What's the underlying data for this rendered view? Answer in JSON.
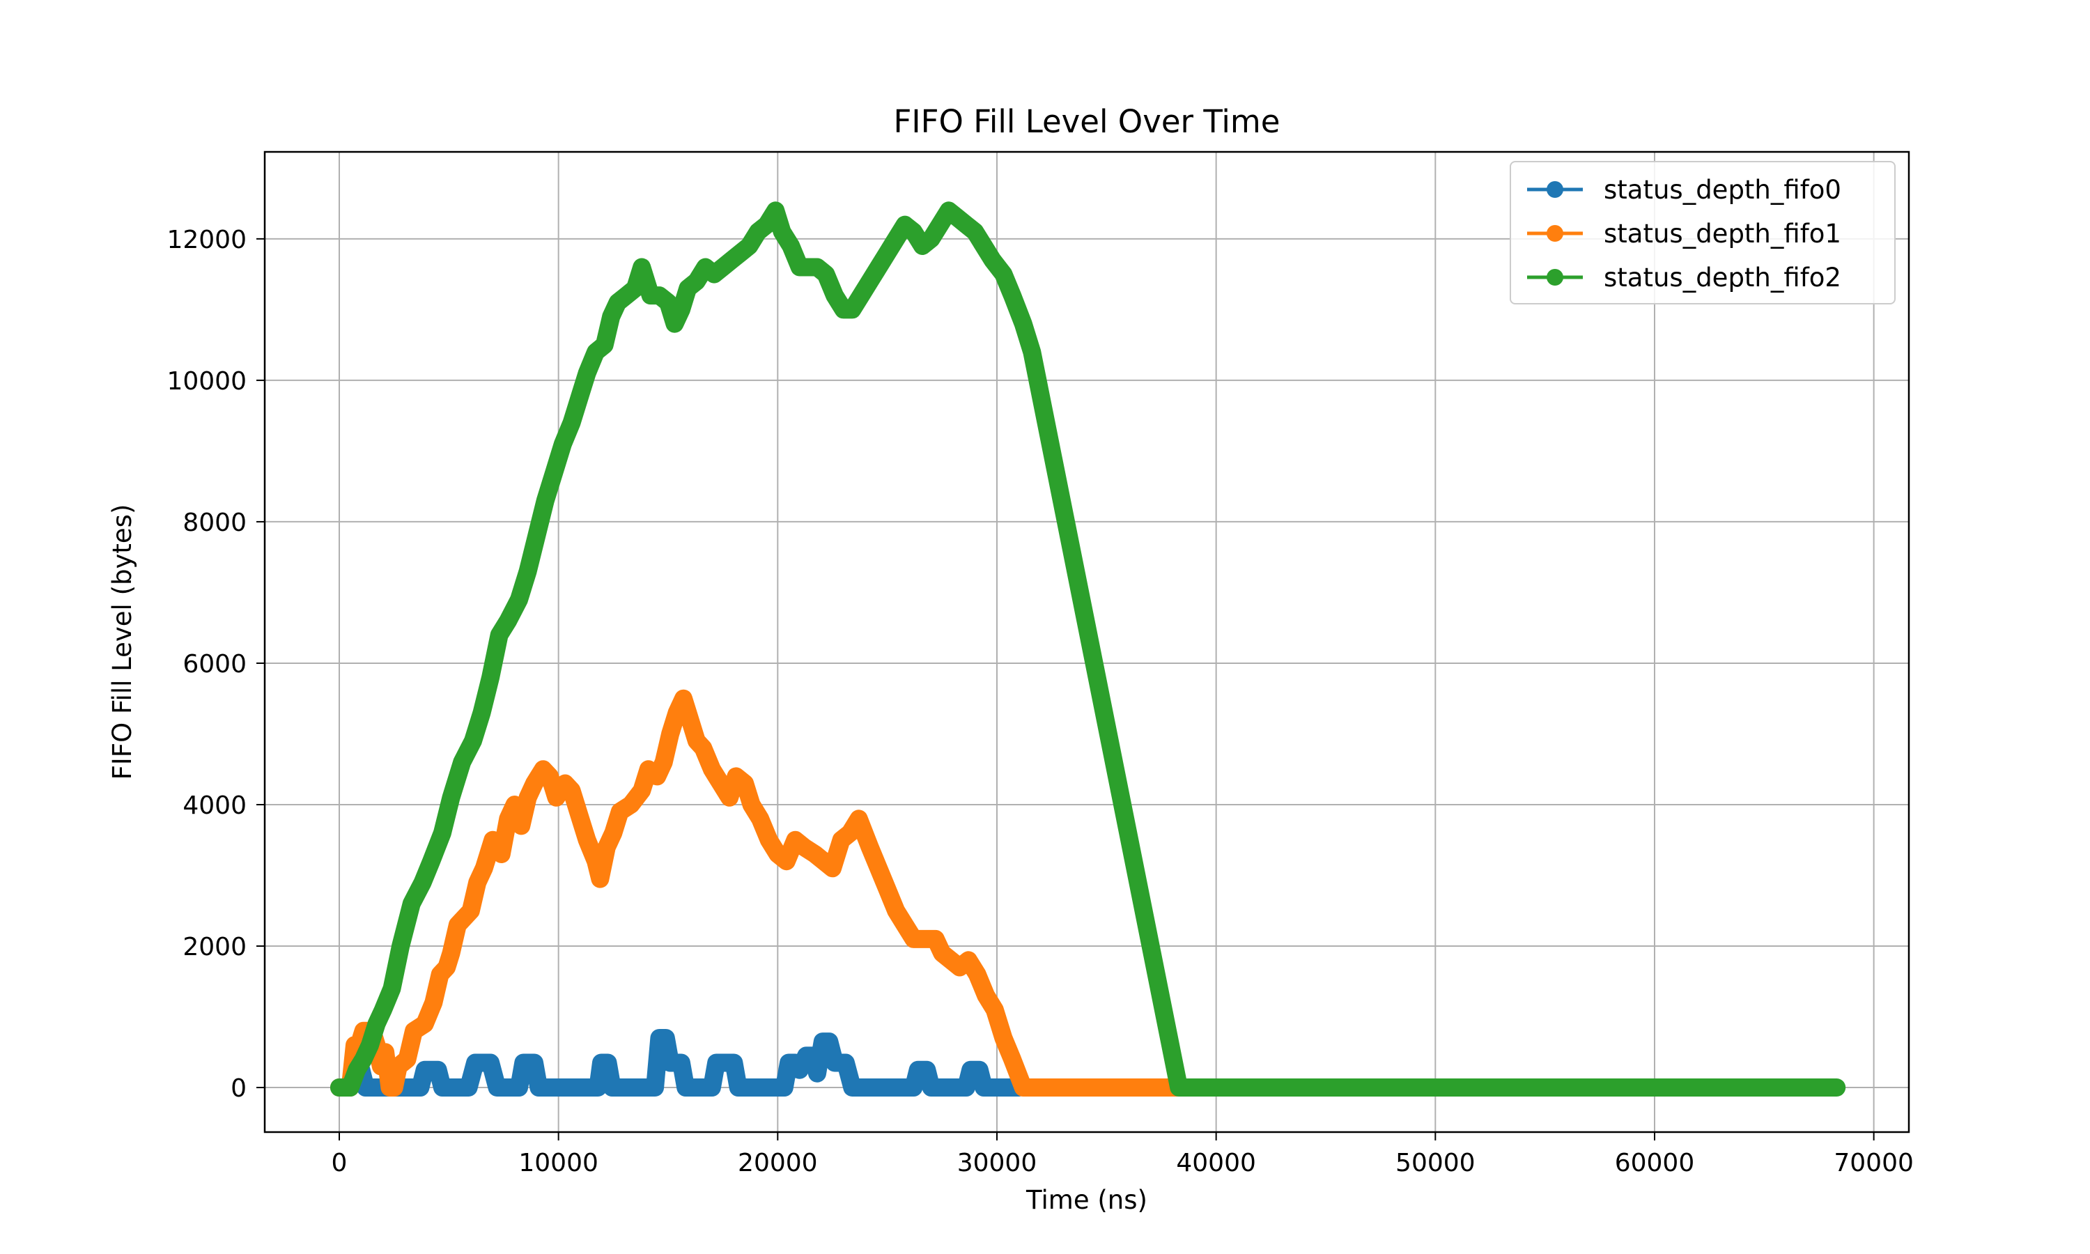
{
  "chart_data": {
    "type": "line",
    "title": "FIFO Fill Level Over Time",
    "xlabel": "Time (ns)",
    "ylabel": "FIFO Fill Level (bytes)",
    "xlim": [
      -3400,
      71600
    ],
    "ylim": [
      -630,
      13230
    ],
    "xticks": [
      0,
      10000,
      20000,
      30000,
      40000,
      50000,
      60000,
      70000
    ],
    "yticks": [
      0,
      2000,
      4000,
      6000,
      8000,
      10000,
      12000
    ],
    "grid": true,
    "legend_position": "top-right",
    "series": [
      {
        "name": "status_depth_fifo0",
        "color": "#1f77b4",
        "points": [
          [
            0,
            0
          ],
          [
            500,
            0
          ],
          [
            700,
            250
          ],
          [
            1000,
            250
          ],
          [
            1200,
            0
          ],
          [
            3700,
            0
          ],
          [
            3900,
            250
          ],
          [
            4500,
            250
          ],
          [
            4700,
            0
          ],
          [
            5900,
            0
          ],
          [
            6200,
            350
          ],
          [
            6900,
            350
          ],
          [
            7200,
            0
          ],
          [
            8200,
            0
          ],
          [
            8400,
            350
          ],
          [
            8900,
            350
          ],
          [
            9100,
            0
          ],
          [
            11800,
            0
          ],
          [
            11950,
            350
          ],
          [
            12250,
            350
          ],
          [
            12450,
            0
          ],
          [
            14400,
            0
          ],
          [
            14600,
            700
          ],
          [
            14900,
            700
          ],
          [
            15100,
            350
          ],
          [
            15600,
            350
          ],
          [
            15800,
            0
          ],
          [
            17000,
            0
          ],
          [
            17200,
            350
          ],
          [
            18000,
            350
          ],
          [
            18200,
            0
          ],
          [
            20300,
            0
          ],
          [
            20500,
            350
          ],
          [
            20800,
            350
          ],
          [
            21000,
            250
          ],
          [
            21300,
            450
          ],
          [
            21600,
            450
          ],
          [
            21800,
            200
          ],
          [
            22050,
            650
          ],
          [
            22350,
            650
          ],
          [
            22600,
            350
          ],
          [
            23100,
            350
          ],
          [
            23400,
            0
          ],
          [
            26200,
            0
          ],
          [
            26400,
            250
          ],
          [
            26800,
            250
          ],
          [
            27000,
            0
          ],
          [
            28600,
            0
          ],
          [
            28800,
            250
          ],
          [
            29200,
            250
          ],
          [
            29400,
            0
          ],
          [
            31000,
            0
          ]
        ]
      },
      {
        "name": "status_depth_fifo1",
        "color": "#ff7f0e",
        "points": [
          [
            0,
            0
          ],
          [
            500,
            0
          ],
          [
            700,
            600
          ],
          [
            900,
            600
          ],
          [
            1100,
            800
          ],
          [
            1500,
            800
          ],
          [
            1700,
            600
          ],
          [
            1900,
            300
          ],
          [
            2100,
            500
          ],
          [
            2300,
            0
          ],
          [
            2500,
            0
          ],
          [
            2700,
            300
          ],
          [
            3100,
            400
          ],
          [
            3400,
            800
          ],
          [
            3900,
            900
          ],
          [
            4300,
            1200
          ],
          [
            4600,
            1600
          ],
          [
            4900,
            1700
          ],
          [
            5100,
            1900
          ],
          [
            5400,
            2300
          ],
          [
            6000,
            2500
          ],
          [
            6300,
            2900
          ],
          [
            6600,
            3100
          ],
          [
            7000,
            3500
          ],
          [
            7400,
            3300
          ],
          [
            7700,
            3800
          ],
          [
            8000,
            4000
          ],
          [
            8300,
            3700
          ],
          [
            8600,
            4100
          ],
          [
            8900,
            4300
          ],
          [
            9300,
            4500
          ],
          [
            9600,
            4400
          ],
          [
            9900,
            4100
          ],
          [
            10300,
            4300
          ],
          [
            10600,
            4200
          ],
          [
            11000,
            3800
          ],
          [
            11300,
            3500
          ],
          [
            11700,
            3200
          ],
          [
            11900,
            2950
          ],
          [
            12200,
            3400
          ],
          [
            12500,
            3600
          ],
          [
            12800,
            3900
          ],
          [
            13300,
            4000
          ],
          [
            13800,
            4200
          ],
          [
            14100,
            4500
          ],
          [
            14500,
            4400
          ],
          [
            14800,
            4600
          ],
          [
            15100,
            5000
          ],
          [
            15400,
            5300
          ],
          [
            15700,
            5500
          ],
          [
            16000,
            5200
          ],
          [
            16300,
            4900
          ],
          [
            16600,
            4800
          ],
          [
            17000,
            4500
          ],
          [
            17400,
            4300
          ],
          [
            17800,
            4100
          ],
          [
            18100,
            4400
          ],
          [
            18500,
            4300
          ],
          [
            18800,
            4000
          ],
          [
            19200,
            3800
          ],
          [
            19600,
            3500
          ],
          [
            20000,
            3300
          ],
          [
            20400,
            3200
          ],
          [
            20800,
            3500
          ],
          [
            21200,
            3400
          ],
          [
            21700,
            3300
          ],
          [
            22100,
            3200
          ],
          [
            22500,
            3100
          ],
          [
            22900,
            3500
          ],
          [
            23300,
            3600
          ],
          [
            23700,
            3800
          ],
          [
            24200,
            3400
          ],
          [
            24600,
            3100
          ],
          [
            25000,
            2800
          ],
          [
            25400,
            2500
          ],
          [
            25800,
            2300
          ],
          [
            26200,
            2100
          ],
          [
            26700,
            2100
          ],
          [
            27200,
            2100
          ],
          [
            27500,
            1900
          ],
          [
            27900,
            1800
          ],
          [
            28300,
            1700
          ],
          [
            28700,
            1800
          ],
          [
            29100,
            1600
          ],
          [
            29500,
            1300
          ],
          [
            29900,
            1100
          ],
          [
            30300,
            700
          ],
          [
            30700,
            400
          ],
          [
            31200,
            0
          ],
          [
            38400,
            0
          ]
        ]
      },
      {
        "name": "status_depth_fifo2",
        "color": "#2ca02c",
        "points": [
          [
            0,
            0
          ],
          [
            500,
            0
          ],
          [
            800,
            250
          ],
          [
            1100,
            400
          ],
          [
            1400,
            600
          ],
          [
            1700,
            900
          ],
          [
            2000,
            1100
          ],
          [
            2400,
            1400
          ],
          [
            2800,
            2000
          ],
          [
            3300,
            2600
          ],
          [
            3800,
            2900
          ],
          [
            4200,
            3200
          ],
          [
            4700,
            3600
          ],
          [
            5100,
            4100
          ],
          [
            5600,
            4600
          ],
          [
            6100,
            4900
          ],
          [
            6500,
            5300
          ],
          [
            6900,
            5800
          ],
          [
            7300,
            6400
          ],
          [
            7700,
            6600
          ],
          [
            8200,
            6900
          ],
          [
            8600,
            7300
          ],
          [
            9000,
            7800
          ],
          [
            9400,
            8300
          ],
          [
            9800,
            8700
          ],
          [
            10200,
            9100
          ],
          [
            10600,
            9400
          ],
          [
            11000,
            9800
          ],
          [
            11300,
            10100
          ],
          [
            11700,
            10400
          ],
          [
            12100,
            10500
          ],
          [
            12400,
            10900
          ],
          [
            12700,
            11100
          ],
          [
            13100,
            11200
          ],
          [
            13500,
            11300
          ],
          [
            13800,
            11600
          ],
          [
            14200,
            11200
          ],
          [
            14600,
            11200
          ],
          [
            15000,
            11100
          ],
          [
            15300,
            10800
          ],
          [
            15600,
            11000
          ],
          [
            15900,
            11300
          ],
          [
            16300,
            11400
          ],
          [
            16700,
            11600
          ],
          [
            17100,
            11500
          ],
          [
            17500,
            11600
          ],
          [
            17900,
            11700
          ],
          [
            18300,
            11800
          ],
          [
            18700,
            11900
          ],
          [
            19100,
            12100
          ],
          [
            19500,
            12200
          ],
          [
            19900,
            12400
          ],
          [
            20200,
            12100
          ],
          [
            20600,
            11900
          ],
          [
            21000,
            11600
          ],
          [
            21400,
            11600
          ],
          [
            21800,
            11600
          ],
          [
            22200,
            11500
          ],
          [
            22600,
            11200
          ],
          [
            23000,
            11000
          ],
          [
            23400,
            11000
          ],
          [
            23800,
            11200
          ],
          [
            24200,
            11400
          ],
          [
            24600,
            11600
          ],
          [
            25000,
            11800
          ],
          [
            25400,
            12000
          ],
          [
            25800,
            12200
          ],
          [
            26200,
            12100
          ],
          [
            26600,
            11900
          ],
          [
            27000,
            12000
          ],
          [
            27400,
            12200
          ],
          [
            27800,
            12400
          ],
          [
            28200,
            12300
          ],
          [
            28600,
            12200
          ],
          [
            29000,
            12100
          ],
          [
            29400,
            11900
          ],
          [
            29800,
            11700
          ],
          [
            30300,
            11500
          ],
          [
            30700,
            11200
          ],
          [
            31200,
            10800
          ],
          [
            31600,
            10400
          ],
          [
            38300,
            0
          ],
          [
            68300,
            0
          ]
        ]
      }
    ]
  }
}
